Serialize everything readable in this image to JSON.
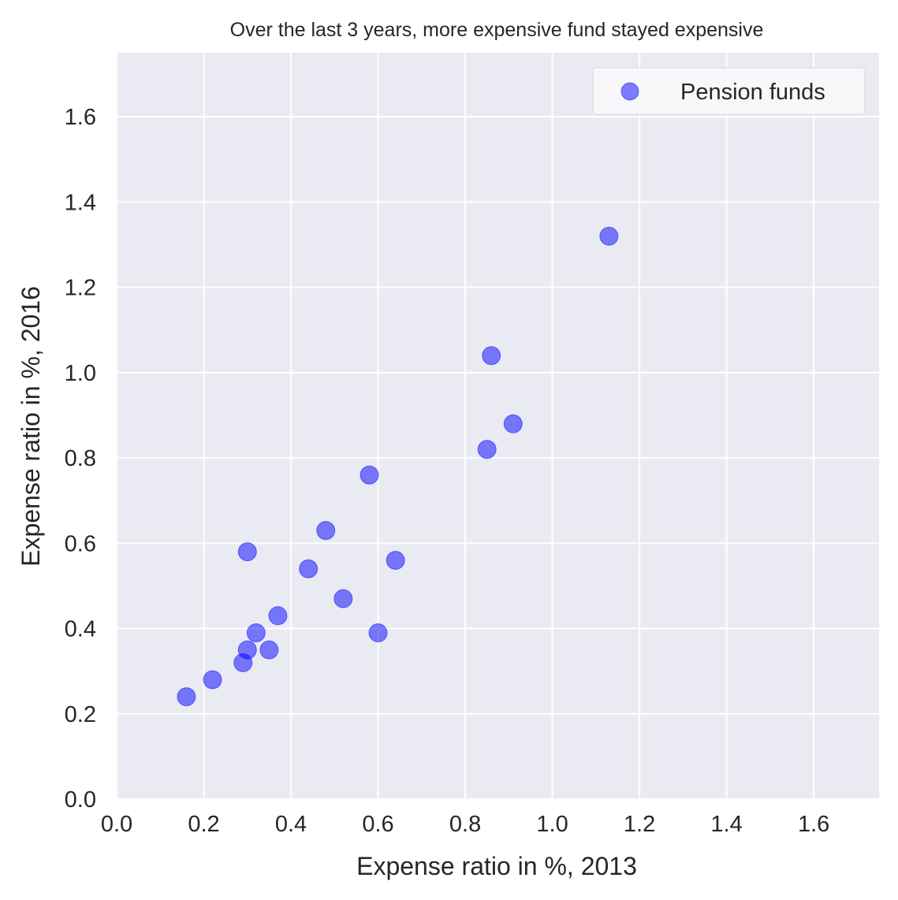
{
  "chart_data": {
    "type": "scatter",
    "title": "Over the last 3 years, more expensive fund stayed expensive",
    "xlabel": "Expense ratio in %, 2013",
    "ylabel": "Expense ratio in %, 2016",
    "xlim": [
      0.0,
      1.75
    ],
    "ylim": [
      0.0,
      1.75
    ],
    "xticks": [
      "0.0",
      "0.2",
      "0.4",
      "0.6",
      "0.8",
      "1.0",
      "1.2",
      "1.4",
      "1.6"
    ],
    "yticks": [
      "0.0",
      "0.2",
      "0.4",
      "0.6",
      "0.8",
      "1.0",
      "1.2",
      "1.4",
      "1.6"
    ],
    "grid": true,
    "legend_position": "top-right",
    "series": [
      {
        "name": "Pension funds",
        "color": "#0000ff",
        "x": [
          0.16,
          0.22,
          0.29,
          0.3,
          0.3,
          0.32,
          0.35,
          0.37,
          0.44,
          0.48,
          0.52,
          0.58,
          0.6,
          0.64,
          0.85,
          0.86,
          0.91,
          1.13
        ],
        "y": [
          0.24,
          0.28,
          0.32,
          0.35,
          0.58,
          0.39,
          0.35,
          0.43,
          0.54,
          0.63,
          0.47,
          0.76,
          0.39,
          0.56,
          0.82,
          1.04,
          0.88,
          1.32
        ]
      }
    ]
  }
}
